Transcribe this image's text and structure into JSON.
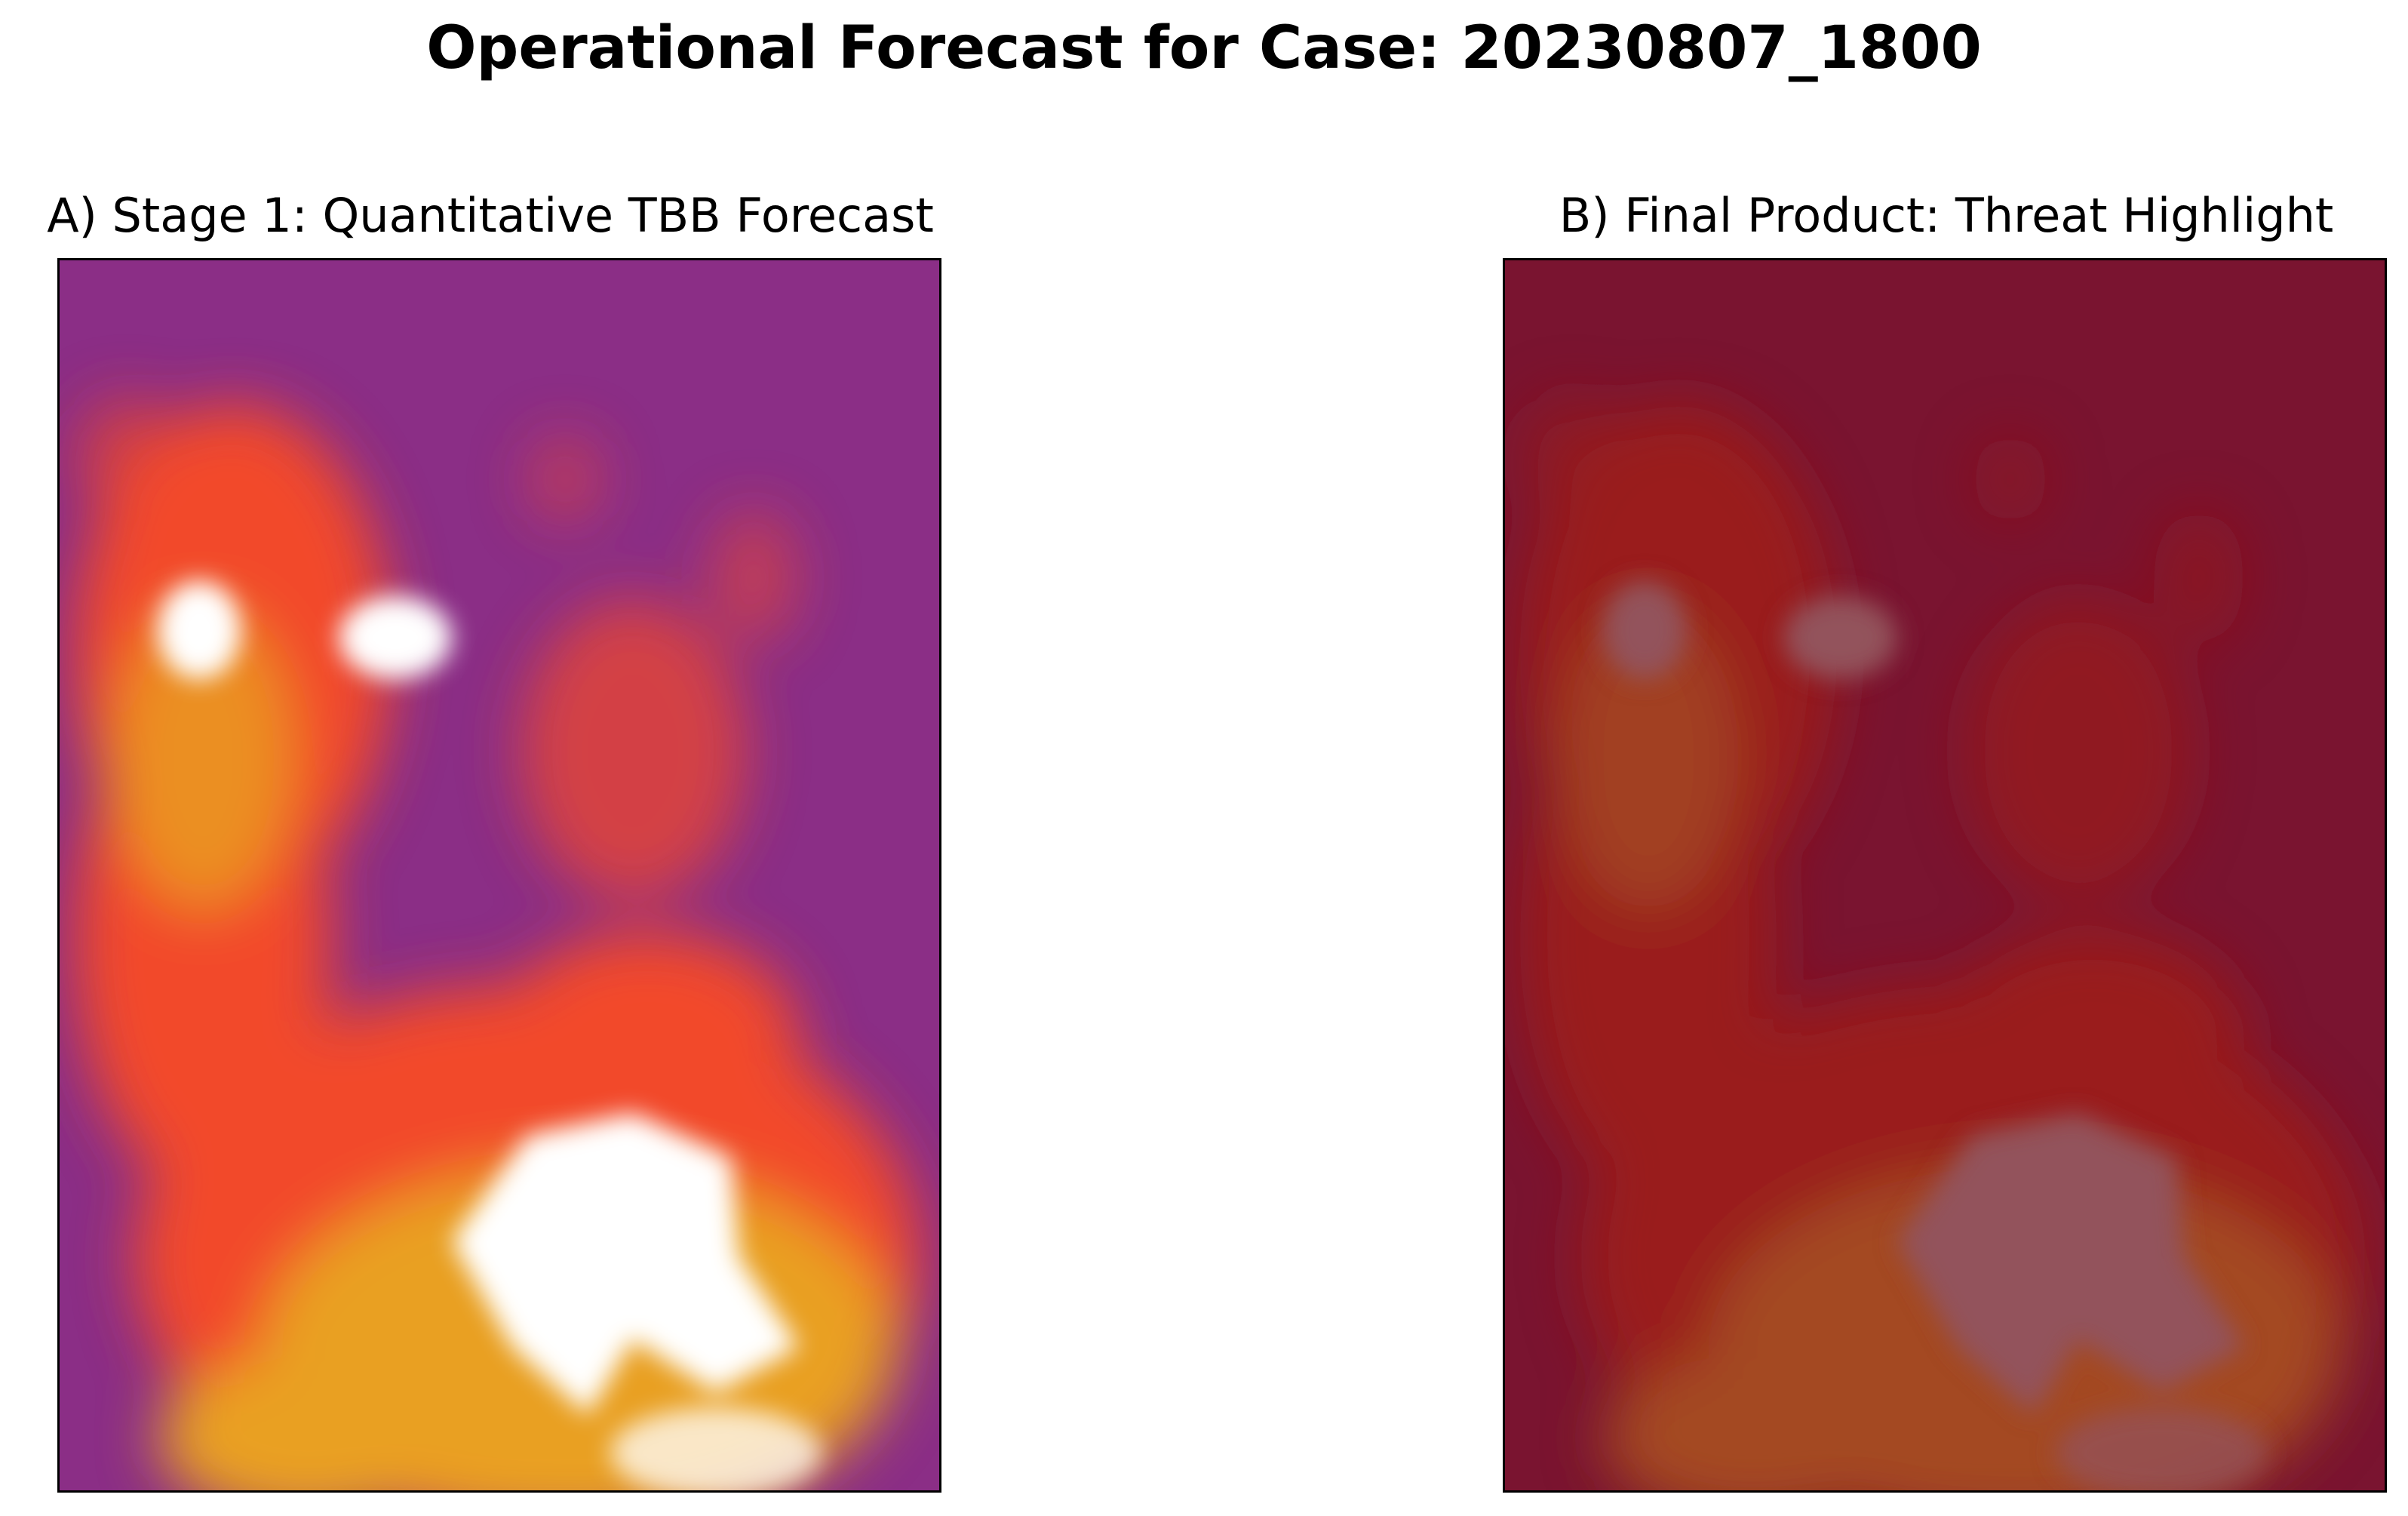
{
  "figure": {
    "suptitle": "Operational Forecast for Case: 20230807_1800"
  },
  "chart_data": [
    {
      "type": "heatmap",
      "title": "A) Stage 1: Quantitative TBB Forecast",
      "colormap": "inferno",
      "colors": {
        "background": "#8b2e86",
        "mid": "#f24a2a",
        "high": "#e9a020",
        "peak": "#ffffff"
      },
      "axes_ticks": "hidden",
      "features": [
        {
          "name": "hot-spot-left",
          "intensity": "peak"
        },
        {
          "name": "hot-spot-center",
          "intensity": "peak"
        },
        {
          "name": "broad-southern-core",
          "intensity": "peak"
        },
        {
          "name": "western-band",
          "intensity": "mid"
        },
        {
          "name": "central-east-cell",
          "intensity": "mid"
        }
      ]
    },
    {
      "type": "heatmap",
      "title": "B) Final Product: Threat Highlight",
      "colormap": "inferno-dimmed",
      "colors": {
        "background": "#7a1430",
        "mid": "#9a1b1c",
        "high": "#a44a22",
        "peak": "#93535b"
      },
      "axes_ticks": "hidden",
      "features": [
        {
          "name": "hot-spot-left",
          "intensity": "peak"
        },
        {
          "name": "hot-spot-center",
          "intensity": "peak"
        },
        {
          "name": "broad-southern-core",
          "intensity": "peak"
        },
        {
          "name": "western-band",
          "intensity": "mid"
        },
        {
          "name": "central-east-cell",
          "intensity": "mid"
        }
      ]
    }
  ]
}
